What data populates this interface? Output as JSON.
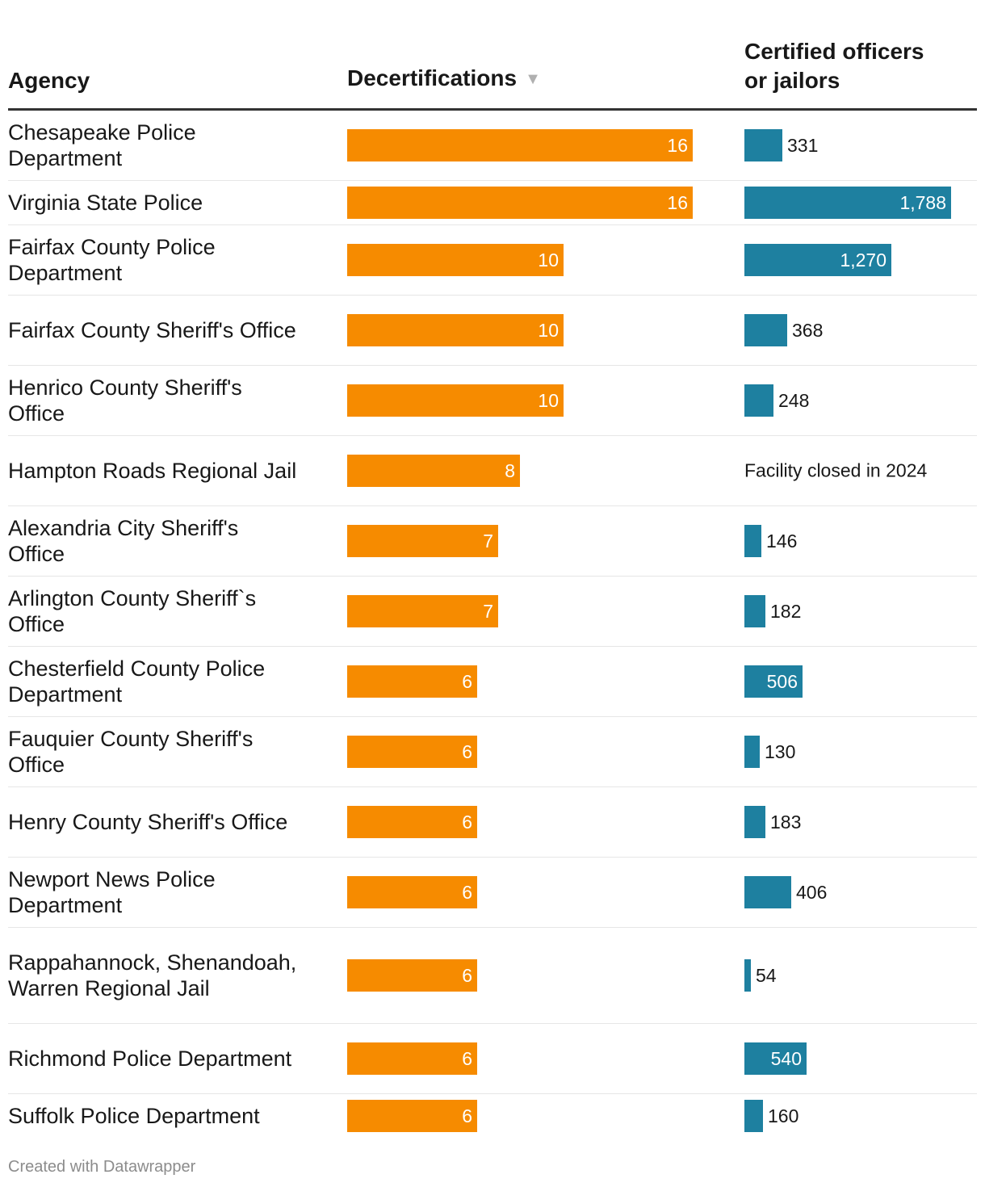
{
  "chart_data": {
    "type": "table",
    "columns": [
      "Agency",
      "Decertifications",
      "Certified officers or jailors"
    ],
    "sort_indicator": "▼",
    "colors": {
      "decertifications": "#f68b00",
      "certified": "#1e80a0"
    },
    "dec_max": 16,
    "cert_max": 1788,
    "rows": [
      {
        "agency": "Chesapeake Police Department",
        "decertifications": 16,
        "certified": 331,
        "certified_label": "331"
      },
      {
        "agency": "Virginia State Police",
        "decertifications": 16,
        "certified": 1788,
        "certified_label": "1,788"
      },
      {
        "agency": "Fairfax County Police Department",
        "decertifications": 10,
        "certified": 1270,
        "certified_label": "1,270"
      },
      {
        "agency": "Fairfax County Sheriff's Office",
        "decertifications": 10,
        "certified": 368,
        "certified_label": "368"
      },
      {
        "agency": "Henrico County Sheriff's Office",
        "decertifications": 10,
        "certified": 248,
        "certified_label": "248"
      },
      {
        "agency": "Hampton Roads Regional Jail",
        "decertifications": 8,
        "certified": null,
        "certified_label": "Facility closed in 2024"
      },
      {
        "agency": "Alexandria City Sheriff's Office",
        "decertifications": 7,
        "certified": 146,
        "certified_label": "146"
      },
      {
        "agency": "Arlington County Sheriff`s Office",
        "decertifications": 7,
        "certified": 182,
        "certified_label": "182"
      },
      {
        "agency": "Chesterfield County Police Department",
        "decertifications": 6,
        "certified": 506,
        "certified_label": "506"
      },
      {
        "agency": "Fauquier County Sheriff's Office",
        "decertifications": 6,
        "certified": 130,
        "certified_label": "130"
      },
      {
        "agency": "Henry County Sheriff's Office",
        "decertifications": 6,
        "certified": 183,
        "certified_label": "183"
      },
      {
        "agency": "Newport News Police Department",
        "decertifications": 6,
        "certified": 406,
        "certified_label": "406"
      },
      {
        "agency": "Rappahannock, Shenandoah, Warren Regional Jail",
        "decertifications": 6,
        "certified": 54,
        "certified_label": "54"
      },
      {
        "agency": "Richmond Police Department",
        "decertifications": 6,
        "certified": 540,
        "certified_label": "540"
      },
      {
        "agency": "Suffolk Police Department",
        "decertifications": 6,
        "certified": 160,
        "certified_label": "160"
      }
    ]
  },
  "header": {
    "agency": "Agency",
    "decertifications": "Decertifications",
    "certified_line1": "Certified officers",
    "certified_line2": "or jailors"
  },
  "footer": {
    "credit": "Created with Datawrapper"
  }
}
